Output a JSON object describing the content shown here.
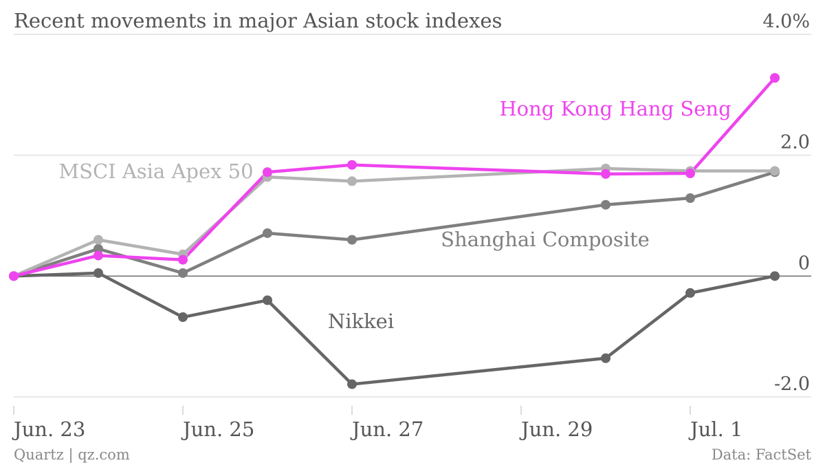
{
  "chart_data": {
    "type": "line",
    "title": "Recent movements in major Asian stock indexes",
    "x": [
      "2014-06-23",
      "2014-06-24",
      "2014-06-25",
      "2014-06-26",
      "2014-06-27",
      "2014-06-30",
      "2014-07-01",
      "2014-07-02"
    ],
    "x_ticks": [
      "Jun. 23",
      "Jun. 25",
      "Jun. 27",
      "Jun. 29",
      "Jul. 1"
    ],
    "y_ticks": [
      {
        "value": 4.0,
        "label": "4.0%"
      },
      {
        "value": 2.0,
        "label": "2.0"
      },
      {
        "value": 0,
        "label": "0"
      },
      {
        "value": -2.0,
        "label": "-2.0"
      }
    ],
    "ylim": [
      -2.0,
      4.0
    ],
    "unit": "%",
    "grid": true,
    "series": [
      {
        "name": "Nikkei",
        "color": "#666666",
        "values": [
          0,
          0.05,
          -0.68,
          -0.4,
          -1.79,
          -1.36,
          -0.28,
          0
        ]
      },
      {
        "name": "Shanghai Composite",
        "color": "#7f7f7f",
        "values": [
          0,
          0.45,
          0.05,
          0.71,
          0.6,
          1.18,
          1.29,
          1.72
        ]
      },
      {
        "name": "MSCI Asia Apex 50",
        "color": "#b3b3b3",
        "values": [
          0,
          0.6,
          0.36,
          1.64,
          1.57,
          1.78,
          1.74,
          1.74
        ]
      },
      {
        "name": "Hong Kong Hang Seng",
        "color": "#ee44ee",
        "values": [
          0,
          0.34,
          0.27,
          1.72,
          1.84,
          1.69,
          1.7,
          3.28
        ]
      }
    ]
  },
  "footer": {
    "source": "Quartz | qz.com",
    "data": "Data: FactSet"
  }
}
